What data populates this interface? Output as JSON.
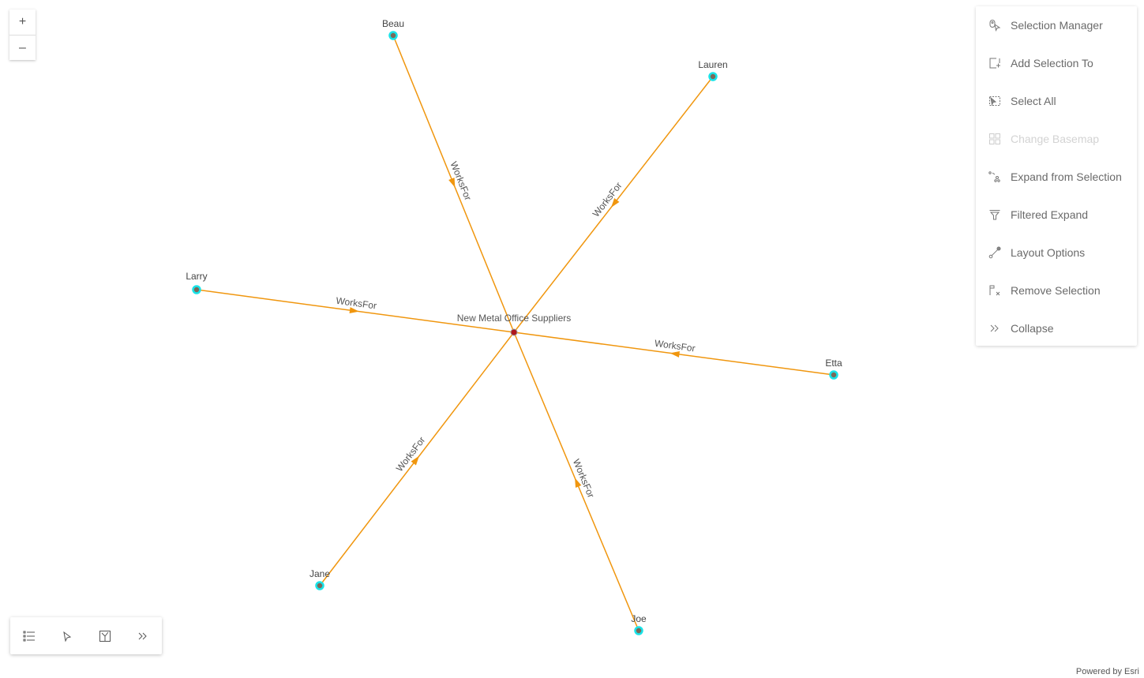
{
  "zoom": {
    "in": "+",
    "out": "–"
  },
  "graph": {
    "center": {
      "label": "New Metal Office Suppliers",
      "color": "#b0181d"
    },
    "nodes": [
      "Beau",
      "Lauren",
      "Larry",
      "Etta",
      "Jane",
      "Joe"
    ],
    "edge_label": "WorksFor",
    "edge_color": "#f0960e",
    "node_ring_color": "#19e3e8",
    "node_fill_color": "#7a6a5a"
  },
  "menu": {
    "items": [
      {
        "label": "Selection Manager",
        "icon": "selection-manager-icon",
        "disabled": false
      },
      {
        "label": "Add Selection To",
        "icon": "add-selection-icon",
        "disabled": false
      },
      {
        "label": "Select All",
        "icon": "select-all-icon",
        "disabled": false
      },
      {
        "label": "Change Basemap",
        "icon": "basemap-icon",
        "disabled": true
      },
      {
        "label": "Expand from Selection",
        "icon": "expand-icon",
        "disabled": false
      },
      {
        "label": "Filtered Expand",
        "icon": "filter-icon",
        "disabled": false
      },
      {
        "label": "Layout Options",
        "icon": "layout-icon",
        "disabled": false
      },
      {
        "label": "Remove Selection",
        "icon": "remove-selection-icon",
        "disabled": false
      },
      {
        "label": "Collapse",
        "icon": "collapse-icon",
        "disabled": false
      }
    ]
  },
  "toolbar": {
    "items": [
      "list-icon",
      "select-pointer-icon",
      "layout-map-icon",
      "expand-chevrons-icon"
    ]
  },
  "footer": {
    "powered": "Powered by Esri"
  }
}
